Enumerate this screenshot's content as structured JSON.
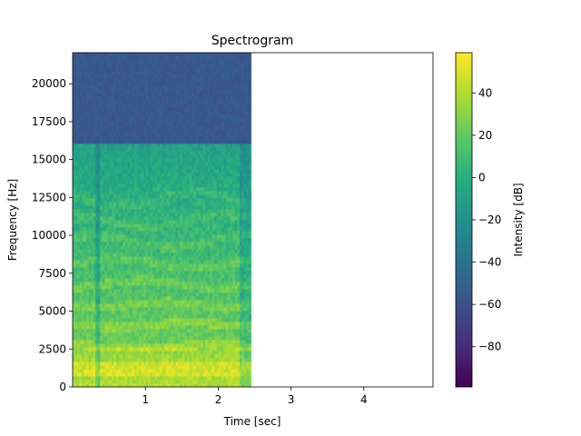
{
  "chart_data": {
    "type": "heatmap",
    "title": "Spectrogram",
    "xlabel": "Time [sec]",
    "ylabel": "Frequency [Hz]",
    "colorbar_label": "Intensity [dB]",
    "colormap": "viridis",
    "xlim": [
      0.0,
      4.95
    ],
    "ylim": [
      0,
      22050
    ],
    "data_extent_x": [
      0.0,
      2.45
    ],
    "x_ticks": [
      1,
      2,
      3,
      4
    ],
    "y_ticks": [
      0,
      2500,
      5000,
      7500,
      10000,
      12500,
      15000,
      17500,
      20000
    ],
    "colorbar_range": [
      -99,
      59
    ],
    "colorbar_ticks": [
      -80,
      -60,
      -40,
      -20,
      0,
      20,
      40
    ],
    "harmonic_bands_hz": [
      900,
      1450,
      2700,
      4100,
      5400,
      6800,
      8200,
      9600,
      11000,
      12400
    ],
    "spectral_rolloff_hz": 16000,
    "noise_floor_db": -55,
    "peak_db": 59,
    "grid": false
  }
}
